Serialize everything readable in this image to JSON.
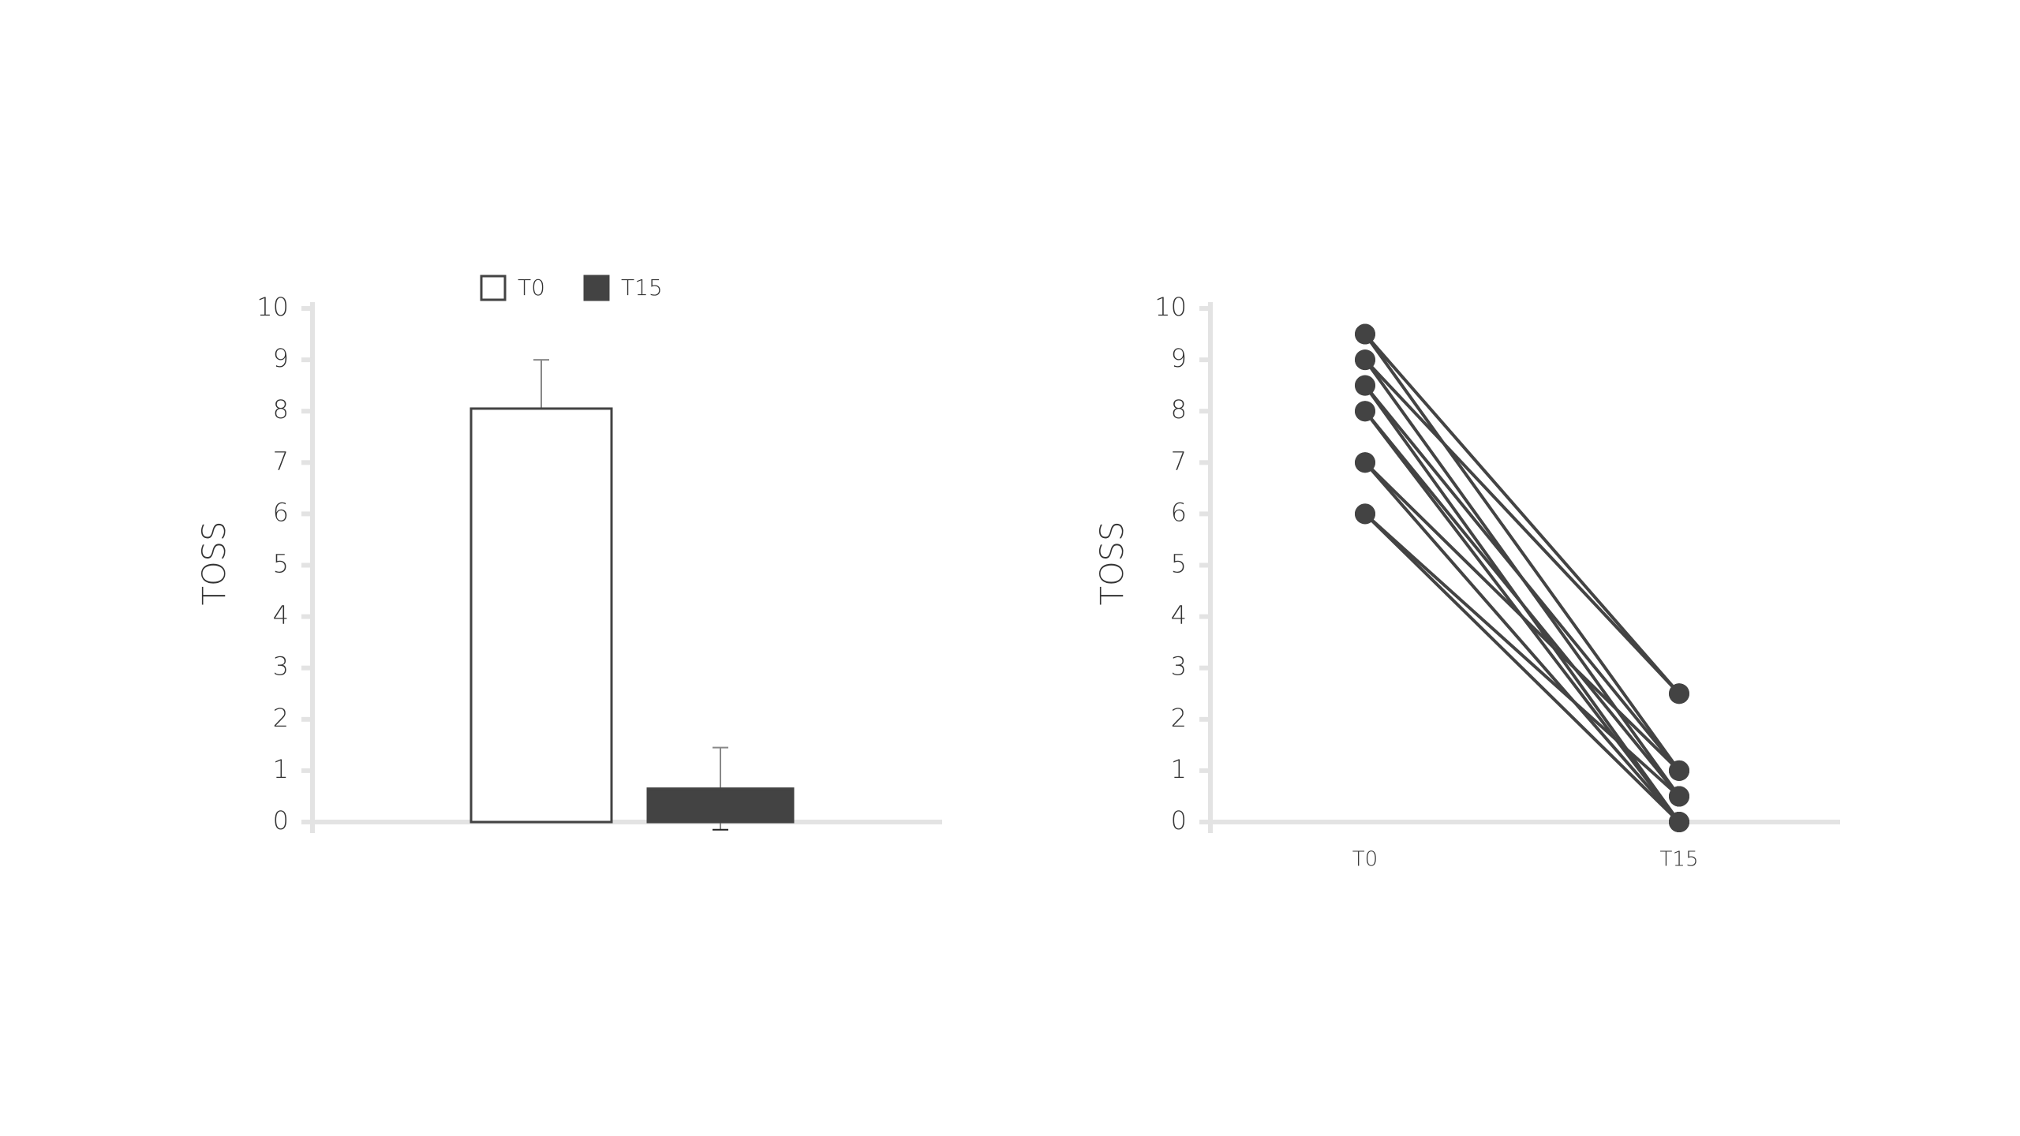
{
  "chart_data": [
    {
      "type": "bar",
      "y_label": "TOSS",
      "categories": [
        "T0",
        "T15"
      ],
      "values": [
        8.05,
        0.65
      ],
      "errors": [
        0.95,
        0.8
      ],
      "colors": [
        "#ffffff",
        "#434343"
      ],
      "edge_color": "#434343",
      "ylim": [
        0,
        10
      ],
      "yticks": [
        0,
        1,
        2,
        3,
        4,
        5,
        6,
        7,
        8,
        9,
        10
      ],
      "legend": "top"
    },
    {
      "type": "line",
      "y_label": "TOSS",
      "categories": [
        "T0",
        "T15"
      ],
      "color": "#434343",
      "series": [
        {
          "values": [
            9.5,
            2.5
          ]
        },
        {
          "values": [
            9,
            2.5
          ]
        },
        {
          "values": [
            9.5,
            1
          ]
        },
        {
          "values": [
            9,
            0.5
          ]
        },
        {
          "values": [
            8.5,
            0
          ]
        },
        {
          "values": [
            8.5,
            1
          ]
        },
        {
          "values": [
            8,
            0
          ]
        },
        {
          "values": [
            8,
            0.5
          ]
        },
        {
          "values": [
            7,
            0
          ]
        },
        {
          "values": [
            7,
            1
          ]
        },
        {
          "values": [
            6,
            0.5
          ]
        },
        {
          "values": [
            6,
            0
          ]
        }
      ],
      "ylim": [
        0,
        10
      ],
      "yticks": [
        0,
        1,
        2,
        3,
        4,
        5,
        6,
        7,
        8,
        9,
        10
      ]
    }
  ]
}
